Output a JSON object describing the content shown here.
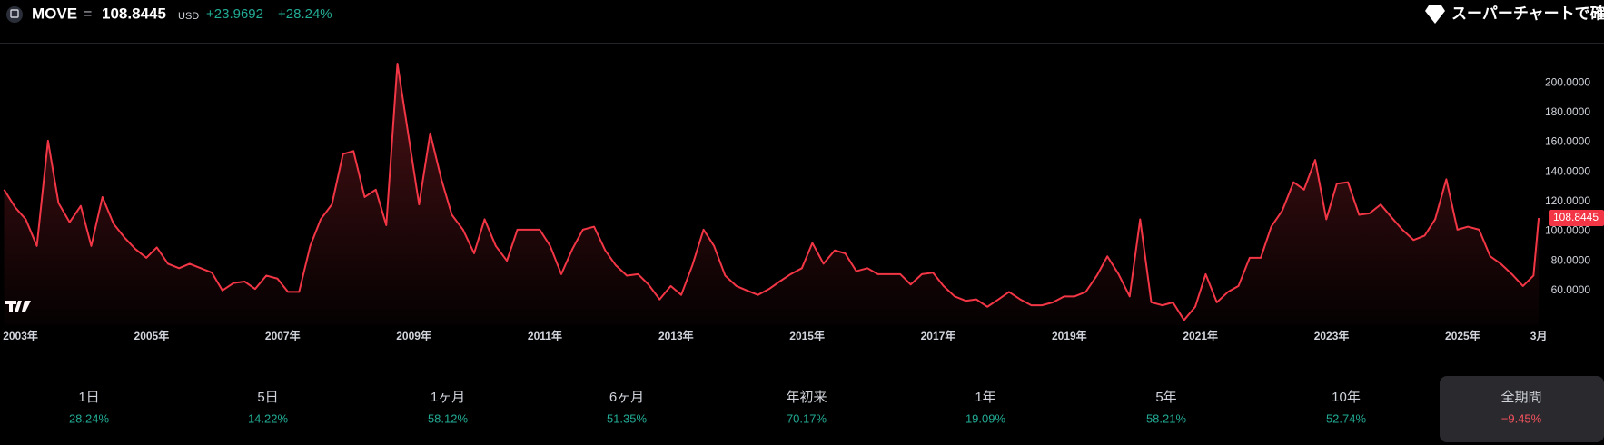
{
  "header": {
    "symbol": "MOVE",
    "separator": "=",
    "price": "108.8445",
    "currency": "USD",
    "change": "+23.9692",
    "change_pct": "+28.24%",
    "supercharts": "スーパーチャートで確認"
  },
  "chart_data": {
    "type": "area",
    "color": "#f23645",
    "x": [
      2002.75,
      2002.92,
      2003.08,
      2003.25,
      2003.42,
      2003.58,
      2003.75,
      2003.92,
      2004.08,
      2004.25,
      2004.42,
      2004.58,
      2004.75,
      2004.92,
      2005.08,
      2005.25,
      2005.42,
      2005.58,
      2005.75,
      2005.92,
      2006.08,
      2006.25,
      2006.42,
      2006.58,
      2006.75,
      2006.92,
      2007.08,
      2007.25,
      2007.42,
      2007.58,
      2007.75,
      2007.92,
      2008.08,
      2008.25,
      2008.42,
      2008.58,
      2008.75,
      2008.92,
      2009.08,
      2009.25,
      2009.42,
      2009.58,
      2009.75,
      2009.92,
      2010.08,
      2010.25,
      2010.42,
      2010.58,
      2010.75,
      2010.92,
      2011.08,
      2011.25,
      2011.42,
      2011.58,
      2011.75,
      2011.92,
      2012.08,
      2012.25,
      2012.42,
      2012.58,
      2012.75,
      2012.92,
      2013.08,
      2013.25,
      2013.42,
      2013.58,
      2013.75,
      2013.92,
      2014.08,
      2014.25,
      2014.42,
      2014.58,
      2014.75,
      2014.92,
      2015.08,
      2015.25,
      2015.42,
      2015.58,
      2015.75,
      2015.92,
      2016.08,
      2016.25,
      2016.42,
      2016.58,
      2016.75,
      2016.92,
      2017.08,
      2017.25,
      2017.42,
      2017.58,
      2017.75,
      2017.92,
      2018.08,
      2018.25,
      2018.42,
      2018.58,
      2018.75,
      2018.92,
      2019.08,
      2019.25,
      2019.42,
      2019.58,
      2019.75,
      2019.92,
      2020.08,
      2020.25,
      2020.42,
      2020.58,
      2020.75,
      2020.92,
      2021.08,
      2021.25,
      2021.42,
      2021.58,
      2021.75,
      2021.92,
      2022.08,
      2022.25,
      2022.42,
      2022.58,
      2022.75,
      2022.92,
      2023.08,
      2023.25,
      2023.42,
      2023.58,
      2023.75,
      2023.92,
      2024.08,
      2024.25,
      2024.42,
      2024.58,
      2024.75,
      2024.92,
      2025.08,
      2025.25,
      2025.42,
      2025.58,
      2025.75,
      2025.92,
      2026.08,
      2026.16
    ],
    "values": [
      128,
      116,
      108,
      90,
      161,
      119,
      106,
      117,
      90,
      123,
      105,
      96,
      88,
      82,
      89,
      78,
      75,
      78,
      75,
      72,
      60,
      65,
      66,
      61,
      70,
      68,
      59,
      59,
      90,
      108,
      118,
      152,
      154,
      123,
      128,
      104,
      213,
      164,
      118,
      166,
      135,
      111,
      101,
      85,
      108,
      90,
      80,
      101,
      101,
      101,
      90,
      71,
      88,
      101,
      103,
      87,
      77,
      70,
      71,
      64,
      54,
      63,
      57,
      77,
      101,
      90,
      70,
      63,
      60,
      57,
      61,
      66,
      71,
      75,
      92,
      78,
      87,
      85,
      73,
      75,
      71,
      71,
      71,
      64,
      71,
      72,
      63,
      56,
      53,
      54,
      49,
      54,
      59,
      54,
      50,
      50,
      52,
      56,
      56,
      59,
      70,
      83,
      71,
      56,
      108,
      52,
      50,
      52,
      40,
      49,
      71,
      52,
      59,
      63,
      82,
      82,
      103,
      114,
      133,
      128,
      148,
      108,
      132,
      133,
      111,
      112,
      118,
      109,
      101,
      94,
      97,
      108,
      135,
      101,
      103,
      101,
      83,
      78,
      71,
      63,
      70,
      108.8445
    ],
    "xlim": [
      2002.75,
      2026.2
    ],
    "xticks": [
      {
        "value": 2003,
        "label": "2003年"
      },
      {
        "value": 2005,
        "label": "2005年"
      },
      {
        "value": 2007,
        "label": "2007年"
      },
      {
        "value": 2009,
        "label": "2009年"
      },
      {
        "value": 2011,
        "label": "2011年"
      },
      {
        "value": 2013,
        "label": "2013年"
      },
      {
        "value": 2015,
        "label": "2015年"
      },
      {
        "value": 2017,
        "label": "2017年"
      },
      {
        "value": 2019,
        "label": "2019年"
      },
      {
        "value": 2021,
        "label": "2021年"
      },
      {
        "value": 2023,
        "label": "2023年"
      },
      {
        "value": 2025,
        "label": "2025年"
      },
      {
        "value": 2026.16,
        "label": "3月"
      }
    ],
    "ylim": [
      36.6,
      222.8
    ],
    "yticks": [
      {
        "value": 60,
        "label": "60.0000"
      },
      {
        "value": 80,
        "label": "80.0000"
      },
      {
        "value": 100,
        "label": "100.0000"
      },
      {
        "value": 120,
        "label": "120.0000"
      },
      {
        "value": 140,
        "label": "140.0000"
      },
      {
        "value": 160,
        "label": "160.0000"
      },
      {
        "value": 180,
        "label": "180.0000"
      },
      {
        "value": 200,
        "label": "200.0000"
      }
    ]
  },
  "periods": [
    {
      "label": "1日",
      "value": "28.24%"
    },
    {
      "label": "5日",
      "value": "14.22%"
    },
    {
      "label": "1ヶ月",
      "value": "58.12%"
    },
    {
      "label": "6ヶ月",
      "value": "51.35%"
    },
    {
      "label": "年初来",
      "value": "70.17%"
    },
    {
      "label": "1年",
      "value": "19.09%"
    },
    {
      "label": "5年",
      "value": "58.21%"
    },
    {
      "label": "10年",
      "value": "52.74%"
    },
    {
      "label": "全期間",
      "value": "−9.45%"
    }
  ]
}
